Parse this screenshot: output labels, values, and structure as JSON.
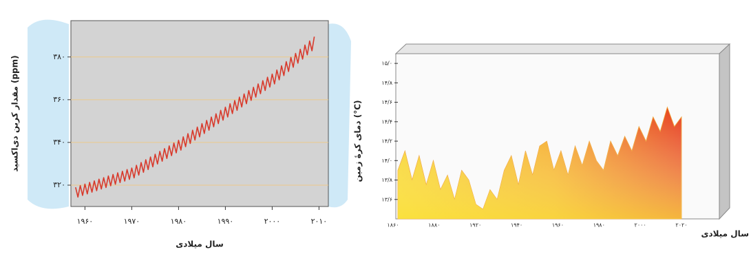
{
  "chart_data": [
    {
      "type": "line",
      "ylabel": "مقدار کربن دی‌اکسید (ppm)",
      "xlabel": "سال میلادی",
      "color": "#d8392b",
      "xlim": [
        1957,
        2012
      ],
      "ylim": [
        310,
        397
      ],
      "xticks": [
        {
          "value": 1960,
          "label": "۱۹۶۰"
        },
        {
          "value": 1970,
          "label": "۱۹۷۰"
        },
        {
          "value": 1980,
          "label": "۱۹۸۰"
        },
        {
          "value": 1990,
          "label": "۱۹۹۰"
        },
        {
          "value": 2000,
          "label": "۲۰۰۰"
        },
        {
          "value": 2010,
          "label": "۲۰۱۰"
        }
      ],
      "yticks": [
        {
          "value": 320,
          "label": "۳۲۰"
        },
        {
          "value": 340,
          "label": "۳۴۰"
        },
        {
          "value": 360,
          "label": "۳۶۰"
        },
        {
          "value": 380,
          "label": "۳۸۰"
        }
      ],
      "grid": true,
      "x": [
        1958,
        1958.5,
        1959,
        1959.5,
        1960,
        1960.5,
        1961,
        1961.5,
        1962,
        1962.5,
        1963,
        1963.5,
        1964,
        1964.5,
        1965,
        1965.5,
        1966,
        1966.5,
        1967,
        1967.5,
        1968,
        1968.5,
        1969,
        1969.5,
        1970,
        1970.5,
        1971,
        1971.5,
        1972,
        1972.5,
        1973,
        1973.5,
        1974,
        1974.5,
        1975,
        1975.5,
        1976,
        1976.5,
        1977,
        1977.5,
        1978,
        1978.5,
        1979,
        1979.5,
        1980,
        1980.5,
        1981,
        1981.5,
        1982,
        1982.5,
        1983,
        1983.5,
        1984,
        1984.5,
        1985,
        1985.5,
        1986,
        1986.5,
        1987,
        1987.5,
        1988,
        1988.5,
        1989,
        1989.5,
        1990,
        1990.5,
        1991,
        1991.5,
        1992,
        1992.5,
        1993,
        1993.5,
        1994,
        1994.5,
        1995,
        1995.5,
        1996,
        1996.5,
        1997,
        1997.5,
        1998,
        1998.5,
        1999,
        1999.5,
        2000,
        2000.5,
        2001,
        2001.5,
        2002,
        2002.5,
        2003,
        2003.5,
        2004,
        2004.5,
        2005,
        2005.5,
        2006,
        2006.5,
        2007,
        2007.5,
        2008,
        2008.5,
        2009
      ],
      "values": [
        319.0,
        314.4,
        319.8,
        315.2,
        320.5,
        315.9,
        321.3,
        316.7,
        322.0,
        317.4,
        322.8,
        318.2,
        323.5,
        318.9,
        324.3,
        319.7,
        325.0,
        320.4,
        325.8,
        321.2,
        326.5,
        321.9,
        327.3,
        322.7,
        328.0,
        323.4,
        329.3,
        324.7,
        330.6,
        326.0,
        331.9,
        327.3,
        333.2,
        328.6,
        334.5,
        329.9,
        335.8,
        331.2,
        337.1,
        332.5,
        338.4,
        333.8,
        339.7,
        335.1,
        341.0,
        336.4,
        342.6,
        338.0,
        344.1,
        339.5,
        345.7,
        341.1,
        347.2,
        342.6,
        348.8,
        344.2,
        350.3,
        345.7,
        351.9,
        347.3,
        353.4,
        348.8,
        355.0,
        350.4,
        356.5,
        351.9,
        358.1,
        353.5,
        359.6,
        355.0,
        361.2,
        356.6,
        362.7,
        358.1,
        364.3,
        359.7,
        365.8,
        361.2,
        367.4,
        362.8,
        368.9,
        364.3,
        370.5,
        365.9,
        372.0,
        367.4,
        373.9,
        369.3,
        375.9,
        371.3,
        377.8,
        373.2,
        379.8,
        375.2,
        381.7,
        377.1,
        383.6,
        379.0,
        385.6,
        381.0,
        387.5,
        382.9,
        389.5
      ]
    },
    {
      "type": "area",
      "ylabel": "دمای کرهٔ زمین (°C)",
      "xlabel": "سال میلادی",
      "xlim": [
        1860,
        2020
      ],
      "ylim": [
        13.4,
        15.1
      ],
      "xtick_labels": [
        "۱۸۶۰",
        "۱۸۸۰",
        "۱۹۲۰",
        "۱۹۴۰",
        "۱۹۶۰",
        "۱۹۸۰",
        "۲۰۰۰",
        "۲۰۲۰"
      ],
      "yticks": [
        {
          "value": 13.6,
          "label": "۱۳/۶"
        },
        {
          "value": 13.8,
          "label": "۱۳/۸"
        },
        {
          "value": 14.0,
          "label": "۱۴/۰"
        },
        {
          "value": 14.2,
          "label": "۱۴/۲"
        },
        {
          "value": 14.4,
          "label": "۱۴/۴"
        },
        {
          "value": 14.6,
          "label": "۱۴/۶"
        },
        {
          "value": 14.8,
          "label": "۱۴/۸"
        },
        {
          "value": 15.0,
          "label": "۱۵/۰"
        }
      ],
      "x": [
        1860,
        1864,
        1868,
        1872,
        1876,
        1880,
        1884,
        1888,
        1892,
        1896,
        1900,
        1904,
        1908,
        1912,
        1916,
        1920,
        1924,
        1928,
        1932,
        1936,
        1940,
        1944,
        1948,
        1952,
        1956,
        1960,
        1964,
        1968,
        1972,
        1976,
        1980,
        1984,
        1988,
        1992,
        1996,
        2000,
        2004,
        2008,
        2012,
        2016,
        2020
      ],
      "values": [
        13.9,
        14.1,
        13.8,
        14.05,
        13.75,
        14.0,
        13.7,
        13.85,
        13.6,
        13.9,
        13.8,
        13.55,
        13.5,
        13.7,
        13.6,
        13.9,
        14.05,
        13.75,
        14.1,
        13.85,
        14.15,
        14.2,
        13.9,
        14.1,
        13.85,
        14.15,
        13.95,
        14.2,
        14.0,
        13.9,
        14.2,
        14.05,
        14.25,
        14.1,
        14.35,
        14.2,
        14.45,
        14.3,
        14.55,
        14.35,
        14.45
      ]
    }
  ]
}
